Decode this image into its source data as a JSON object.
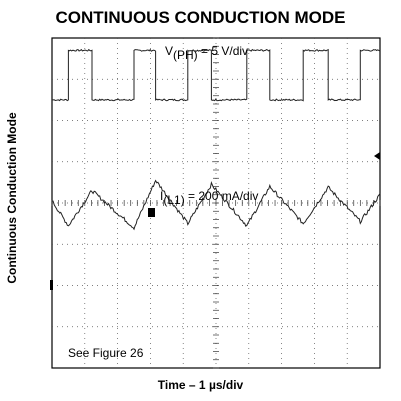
{
  "title": "CONTINUOUS CONDUCTION MODE",
  "ylabel": "Continuous Conduction Mode",
  "xlabel": "Time – 1 µs/div",
  "chart_data": {
    "type": "line",
    "title": "CONTINUOUS CONDUCTION MODE",
    "xlabel": "Time – 1 µs/div",
    "ylabel": "Continuous Conduction Mode",
    "grid": true,
    "divisions": {
      "x": 10,
      "y": 8
    },
    "xlim": [
      0,
      10
    ],
    "ylim": [
      0,
      8
    ],
    "series": [
      {
        "name": "V(PH) = 5 V/div",
        "label_main": "V",
        "label_sub": "(PH)",
        "label_rest": " = 5 V/div",
        "x": [
          0.0,
          0.5,
          0.5,
          1.22,
          1.22,
          2.5,
          2.5,
          3.16,
          3.16,
          4.14,
          4.14,
          4.86,
          4.86,
          5.94,
          5.94,
          6.64,
          6.64,
          7.66,
          7.66,
          8.42,
          8.42,
          9.4,
          9.4,
          10.0
        ],
        "y": [
          6.5,
          6.5,
          7.7,
          7.7,
          6.5,
          6.5,
          7.7,
          7.7,
          6.5,
          6.5,
          7.7,
          7.7,
          6.5,
          6.5,
          7.7,
          7.7,
          6.5,
          6.5,
          7.7,
          7.7,
          6.5,
          6.5,
          7.7,
          7.7
        ]
      },
      {
        "name": "I(L1) = 200 mA/div",
        "label_main": "I",
        "label_sub": "(L1)",
        "label_rest": " = 200 mA/div",
        "x": [
          0.0,
          0.5,
          1.22,
          2.5,
          3.16,
          4.14,
          4.86,
          5.94,
          6.64,
          7.66,
          8.42,
          9.4,
          10.0
        ],
        "y": [
          4.05,
          3.45,
          4.3,
          3.4,
          4.55,
          3.5,
          4.45,
          3.45,
          4.4,
          3.5,
          4.38,
          3.55,
          4.2
        ]
      }
    ],
    "annotations": [
      "See Figure 26"
    ]
  }
}
